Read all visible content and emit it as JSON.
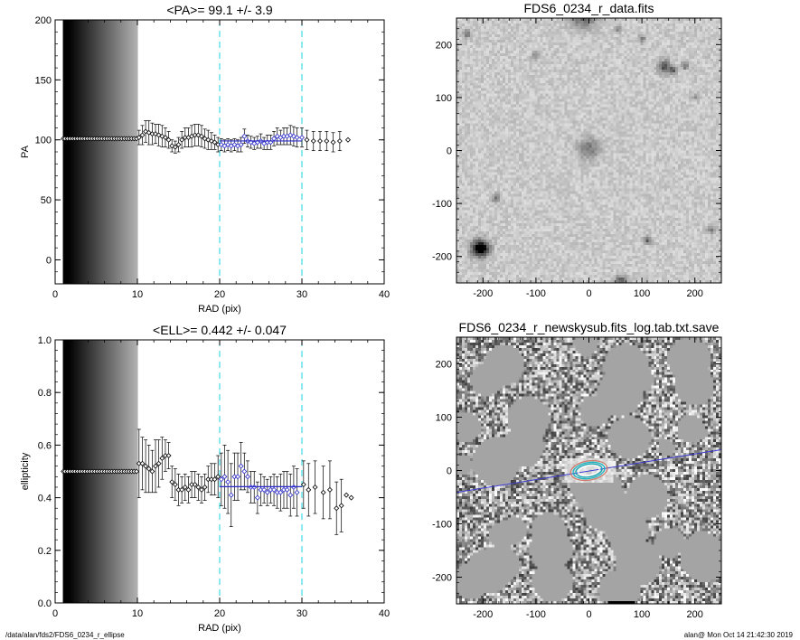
{
  "footer": {
    "left": "/data/alan/fds2/FDS6_0234_r_ellipse",
    "right": "alan@  Mon Oct 14 21:42:30 2019"
  },
  "chart_data": [
    {
      "type": "scatter",
      "title": "<PA>=  99.1 +/-   3.9",
      "xlabel": "RAD (pix)",
      "ylabel": "PA",
      "xlim": [
        0,
        40
      ],
      "ylim": [
        -20,
        200
      ],
      "xticks": [
        0,
        10,
        20,
        30,
        40
      ],
      "yticks": [
        0,
        50,
        100,
        150,
        200
      ],
      "vlines": [
        20,
        30
      ],
      "mean_line": {
        "x": [
          20,
          30
        ],
        "y": 99.1
      },
      "fill_region": [
        1,
        10
      ],
      "series": [
        {
          "values": [
            [
              1.0,
              101,
              0
            ],
            [
              1.2,
              101,
              0
            ],
            [
              1.5,
              101,
              0
            ],
            [
              1.8,
              101,
              0
            ],
            [
              2.1,
              101,
              0
            ],
            [
              2.4,
              101,
              0
            ],
            [
              2.7,
              101,
              0
            ],
            [
              3.0,
              101,
              0
            ],
            [
              3.3,
              101,
              0
            ],
            [
              3.6,
              101,
              0
            ],
            [
              3.9,
              101,
              0
            ],
            [
              4.2,
              101,
              0
            ],
            [
              4.5,
              101,
              0
            ],
            [
              4.8,
              101,
              0
            ],
            [
              5.1,
              101,
              0
            ],
            [
              5.4,
              101,
              0
            ],
            [
              5.7,
              101,
              0
            ],
            [
              6.0,
              101,
              0
            ],
            [
              6.3,
              101,
              0
            ],
            [
              6.6,
              101,
              0
            ],
            [
              6.9,
              101,
              0
            ],
            [
              7.2,
              101,
              0
            ],
            [
              7.5,
              101,
              0
            ],
            [
              7.8,
              101,
              0
            ],
            [
              8.1,
              101,
              0
            ],
            [
              8.4,
              101,
              0
            ],
            [
              8.7,
              101,
              0
            ],
            [
              9.0,
              101,
              0
            ],
            [
              9.3,
              101,
              0
            ],
            [
              9.6,
              101,
              0
            ],
            [
              9.9,
              101,
              0
            ],
            [
              10.2,
              102,
              6
            ],
            [
              10.6,
              104,
              8
            ],
            [
              11.0,
              107,
              9
            ],
            [
              11.4,
              106,
              10
            ],
            [
              11.8,
              105,
              9
            ],
            [
              12.2,
              105,
              8
            ],
            [
              12.6,
              104,
              9
            ],
            [
              13.0,
              103,
              9
            ],
            [
              13.4,
              102,
              8
            ],
            [
              13.8,
              100,
              7
            ],
            [
              14.2,
              95,
              5
            ],
            [
              14.6,
              94,
              5
            ],
            [
              15.0,
              96,
              6
            ],
            [
              15.4,
              100,
              7
            ],
            [
              15.8,
              102,
              8
            ],
            [
              16.2,
              102,
              8
            ],
            [
              16.6,
              103,
              9
            ],
            [
              17.0,
              104,
              9
            ],
            [
              17.4,
              104,
              9
            ],
            [
              17.8,
              103,
              9
            ],
            [
              18.2,
              101,
              8
            ],
            [
              18.6,
              100,
              8
            ],
            [
              19.0,
              99,
              7
            ],
            [
              19.4,
              98,
              6
            ],
            [
              19.8,
              96,
              6
            ],
            [
              20.2,
              96,
              5
            ],
            [
              20.6,
              95,
              5
            ],
            [
              21.0,
              96,
              5
            ],
            [
              21.4,
              95,
              5
            ],
            [
              21.8,
              96,
              5
            ],
            [
              22.2,
              95,
              5
            ],
            [
              22.6,
              96,
              6
            ],
            [
              23.0,
              103,
              6
            ],
            [
              23.4,
              99,
              5
            ],
            [
              23.8,
              98,
              5
            ],
            [
              24.2,
              97,
              5
            ],
            [
              24.6,
              98,
              5
            ],
            [
              25.0,
              99,
              6
            ],
            [
              25.4,
              97,
              5
            ],
            [
              25.8,
              98,
              6
            ],
            [
              26.2,
              98,
              6
            ],
            [
              26.6,
              101,
              6
            ],
            [
              27.0,
              103,
              7
            ],
            [
              27.4,
              102,
              6
            ],
            [
              27.8,
              103,
              7
            ],
            [
              28.2,
              103,
              7
            ],
            [
              28.6,
              104,
              8
            ],
            [
              29.0,
              103,
              8
            ],
            [
              29.4,
              102,
              8
            ],
            [
              30.0,
              102,
              8
            ],
            [
              30.6,
              100,
              8
            ],
            [
              31.4,
              99,
              8
            ],
            [
              32.2,
              99,
              8
            ],
            [
              33.0,
              99,
              8
            ],
            [
              33.8,
              98,
              8
            ],
            [
              34.6,
              99,
              8
            ],
            [
              35.6,
              100,
              0
            ]
          ]
        }
      ]
    },
    {
      "type": "scatter",
      "title": "<ELL>= 0.442 +/-  0.047",
      "xlabel": "RAD (pix)",
      "ylabel": "ellipticity",
      "xlim": [
        0,
        40
      ],
      "ylim": [
        0,
        1
      ],
      "xticks": [
        0,
        10,
        20,
        30,
        40
      ],
      "yticks": [
        0.0,
        0.2,
        0.4,
        0.6,
        0.8,
        1.0
      ],
      "vlines": [
        20,
        30
      ],
      "mean_line": {
        "x": [
          20,
          30
        ],
        "y": 0.442
      },
      "fill_region": [
        1,
        10
      ],
      "series": [
        {
          "values": [
            [
              1.0,
              0.5,
              0.5
            ],
            [
              1.2,
              0.5,
              0.5
            ],
            [
              1.5,
              0.5,
              0.5
            ],
            [
              1.8,
              0.5,
              0.5
            ],
            [
              2.1,
              0.5,
              0.5
            ],
            [
              2.4,
              0.5,
              0.5
            ],
            [
              2.7,
              0.5,
              0.5
            ],
            [
              3.0,
              0.5,
              0.5
            ],
            [
              3.3,
              0.5,
              0.5
            ],
            [
              3.6,
              0.5,
              0.5
            ],
            [
              3.9,
              0.5,
              0.5
            ],
            [
              4.2,
              0.5,
              0.5
            ],
            [
              4.5,
              0.5,
              0.5
            ],
            [
              4.8,
              0.5,
              0.5
            ],
            [
              5.1,
              0.5,
              0.5
            ],
            [
              5.4,
              0.5,
              0.5
            ],
            [
              5.7,
              0.5,
              0.5
            ],
            [
              6.0,
              0.5,
              0.5
            ],
            [
              6.3,
              0.5,
              0.5
            ],
            [
              6.6,
              0.5,
              0.5
            ],
            [
              6.9,
              0.5,
              0.5
            ],
            [
              7.2,
              0.5,
              0.5
            ],
            [
              7.5,
              0.5,
              0.5
            ],
            [
              7.8,
              0.5,
              0.5
            ],
            [
              8.1,
              0.5,
              0.5
            ],
            [
              8.4,
              0.5,
              0.5
            ],
            [
              8.7,
              0.5,
              0.5
            ],
            [
              9.0,
              0.5,
              0.5
            ],
            [
              9.3,
              0.5,
              0.5
            ],
            [
              9.6,
              0.5,
              0.5
            ],
            [
              9.9,
              0.5,
              0.5
            ],
            [
              10.2,
              0.53,
              0.13
            ],
            [
              10.6,
              0.53,
              0.1
            ],
            [
              11.0,
              0.52,
              0.1
            ],
            [
              11.4,
              0.51,
              0.09
            ],
            [
              11.8,
              0.5,
              0.08
            ],
            [
              12.2,
              0.52,
              0.1
            ],
            [
              12.6,
              0.53,
              0.09
            ],
            [
              13.0,
              0.55,
              0.08
            ],
            [
              13.4,
              0.56,
              0.06
            ],
            [
              13.8,
              0.56,
              0.05
            ],
            [
              14.2,
              0.46,
              0.06
            ],
            [
              14.6,
              0.45,
              0.06
            ],
            [
              15.0,
              0.43,
              0.06
            ],
            [
              15.4,
              0.43,
              0.05
            ],
            [
              15.8,
              0.44,
              0.05
            ],
            [
              16.2,
              0.43,
              0.05
            ],
            [
              16.6,
              0.45,
              0.05
            ],
            [
              17.0,
              0.45,
              0.05
            ],
            [
              17.4,
              0.44,
              0.05
            ],
            [
              17.8,
              0.43,
              0.05
            ],
            [
              18.2,
              0.44,
              0.05
            ],
            [
              18.6,
              0.47,
              0.05
            ],
            [
              19.0,
              0.47,
              0.06
            ],
            [
              19.4,
              0.47,
              0.06
            ],
            [
              19.8,
              0.48,
              0.08
            ],
            [
              20.2,
              0.47,
              0.1
            ],
            [
              20.6,
              0.48,
              0.12
            ],
            [
              21.0,
              0.46,
              0.12
            ],
            [
              21.4,
              0.41,
              0.12
            ],
            [
              21.8,
              0.48,
              0.09
            ],
            [
              22.2,
              0.48,
              0.09
            ],
            [
              22.6,
              0.52,
              0.09
            ],
            [
              23.0,
              0.5,
              0.07
            ],
            [
              23.4,
              0.48,
              0.06
            ],
            [
              23.8,
              0.44,
              0.06
            ],
            [
              24.2,
              0.44,
              0.06
            ],
            [
              24.6,
              0.4,
              0.06
            ],
            [
              25.0,
              0.43,
              0.06
            ],
            [
              25.4,
              0.43,
              0.05
            ],
            [
              25.8,
              0.42,
              0.05
            ],
            [
              26.2,
              0.43,
              0.05
            ],
            [
              26.6,
              0.43,
              0.06
            ],
            [
              27.0,
              0.42,
              0.06
            ],
            [
              27.4,
              0.42,
              0.07
            ],
            [
              27.8,
              0.43,
              0.07
            ],
            [
              28.2,
              0.43,
              0.07
            ],
            [
              28.6,
              0.41,
              0.08
            ],
            [
              29.0,
              0.44,
              0.08
            ],
            [
              29.4,
              0.42,
              0.09
            ],
            [
              30.2,
              0.45,
              0.09
            ],
            [
              30.8,
              0.43,
              0.1
            ],
            [
              31.6,
              0.44,
              0.1
            ],
            [
              32.6,
              0.42,
              0.1
            ],
            [
              33.4,
              0.43,
              0.11
            ],
            [
              34.2,
              0.36,
              0.1
            ],
            [
              34.8,
              0.37,
              0.1
            ],
            [
              35.4,
              0.41,
              0
            ],
            [
              36.0,
              0.4,
              0
            ]
          ]
        }
      ]
    },
    {
      "type": "image",
      "title": "FDS6_0234_r_data.fits",
      "xlim": [
        -250,
        250
      ],
      "ylim": [
        -250,
        250
      ],
      "xticks": [
        -200,
        -100,
        0,
        100,
        200
      ],
      "yticks": [
        -200,
        -100,
        0,
        100,
        200
      ],
      "sources": [
        {
          "x": -205,
          "y": -185,
          "r": 16,
          "peak": 0.95
        },
        {
          "x": -205,
          "y": -185,
          "r": 6,
          "peak": 1.0
        },
        {
          "x": -10,
          "y": 260,
          "r": 26,
          "peak": 0.55
        },
        {
          "x": 143,
          "y": 158,
          "r": 12,
          "peak": 0.55
        },
        {
          "x": 160,
          "y": 152,
          "r": 7,
          "peak": 0.45
        },
        {
          "x": 182,
          "y": 160,
          "r": 7,
          "peak": 0.4
        },
        {
          "x": 110,
          "y": -170,
          "r": 7,
          "peak": 0.45
        },
        {
          "x": -175,
          "y": -90,
          "r": 8,
          "peak": 0.4
        },
        {
          "x": -230,
          "y": 220,
          "r": 8,
          "peak": 0.35
        },
        {
          "x": 0,
          "y": 3,
          "r": 20,
          "peak": 0.35
        },
        {
          "x": 60,
          "y": -245,
          "r": 10,
          "peak": 0.45
        },
        {
          "x": 100,
          "y": 210,
          "r": 8,
          "peak": 0.3
        },
        {
          "x": -100,
          "y": 180,
          "r": 7,
          "peak": 0.25
        },
        {
          "x": 230,
          "y": -150,
          "r": 8,
          "peak": 0.3
        },
        {
          "x": 55,
          "y": 230,
          "r": 6,
          "peak": 0.3
        },
        {
          "x": 200,
          "y": 100,
          "r": 6,
          "peak": 0.25
        }
      ]
    },
    {
      "type": "image",
      "title": "FDS6_0234_r_newskysub.fits_log.tab.txt.save",
      "xlim": [
        -250,
        250
      ],
      "ylim": [
        -250,
        250
      ],
      "xticks": [
        -200,
        -100,
        0,
        100,
        200
      ],
      "yticks": [
        -200,
        -100,
        0,
        100,
        200
      ],
      "pa_line": {
        "from": [
          -250,
          -41
        ],
        "to": [
          250,
          39
        ]
      },
      "ellipses": [
        {
          "rx": 35,
          "ry": 18
        },
        {
          "rx": 30,
          "ry": 15
        },
        {
          "rx": 25,
          "ry": 12
        },
        {
          "rx": 20,
          "ry": 9
        }
      ]
    }
  ]
}
